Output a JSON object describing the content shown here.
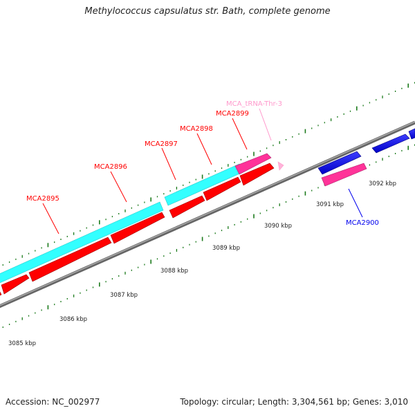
{
  "map": {
    "title": "Methylococcus capsulatus str. Bath, complete genome",
    "accession_text": "Accession: NC_002977",
    "summary_text": "Topology: circular; Length: 3,304,561 bp; Genes: 3,010"
  },
  "colors": {
    "cds": "#ff0000",
    "cds_dark": "#b00000",
    "trna": "#ff3399",
    "trna_light": "#ff99cc",
    "highlight": "#33ffff",
    "reverse_cds": "#0000ee",
    "backbone": "#888888",
    "ticks": "#1b7a1b"
  },
  "scale_ticks": [
    {
      "label": "3085 kbp"
    },
    {
      "label": "3086 kbp"
    },
    {
      "label": "3087 kbp"
    },
    {
      "label": "3088 kbp"
    },
    {
      "label": "3089 kbp"
    },
    {
      "label": "3090 kbp"
    },
    {
      "label": "3091 kbp"
    },
    {
      "label": "3092 kbp"
    }
  ],
  "gene_labels": [
    {
      "name": "MCA2895",
      "color": "#ff0000"
    },
    {
      "name": "MCA2896",
      "color": "#ff0000"
    },
    {
      "name": "MCA2897",
      "color": "#ff0000"
    },
    {
      "name": "MCA2898",
      "color": "#ff0000"
    },
    {
      "name": "MCA2899",
      "color": "#ff0000"
    },
    {
      "name": "MCA_tRNA-Thr-3",
      "color": "#ff99cc"
    },
    {
      "name": "MCA2900",
      "color": "#0000ee"
    }
  ]
}
